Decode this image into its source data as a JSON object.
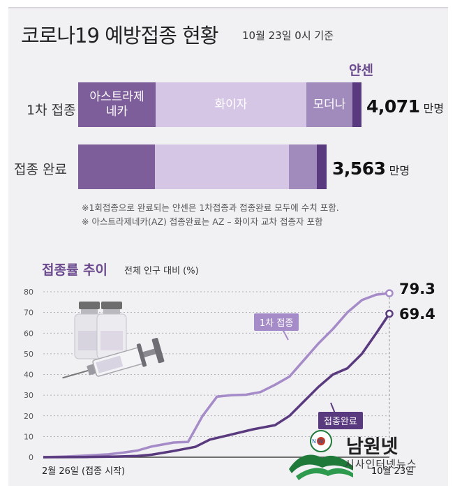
{
  "header": {
    "title": "코로나19 예방접종 현황",
    "as_of": "10월 23일 0시 기준"
  },
  "chart_data": [
    {
      "type": "bar",
      "orientation": "horizontal",
      "stacked": true,
      "categories": [
        "1차 접종",
        "접종 완료"
      ],
      "series": [
        {
          "name": "아스트라제네카",
          "color": "#7e5e9a"
        },
        {
          "name": "화이자",
          "color": "#d6c6e6"
        },
        {
          "name": "모더나",
          "color": "#a18bbd"
        },
        {
          "name": "얀센",
          "color": "#5a3a7e"
        }
      ],
      "totals": [
        {
          "value": "4,071",
          "unit": "만명"
        },
        {
          "value": "3,563",
          "unit": "만명"
        }
      ],
      "notes": [
        "※1회접종으로 완료되는 얀센은 1차접종과 접종완료 모두에 수치 포함.",
        "※ 아스트라제네카(AZ) 접종완료는 AZ – 화이자 교차 접종자 포함"
      ]
    },
    {
      "type": "line",
      "title": "접종률 추이",
      "subtitle": "전체 인구 대비 (%)",
      "ylim": [
        0,
        80
      ],
      "yticks": [
        0,
        10,
        20,
        30,
        40,
        50,
        60,
        70,
        80
      ],
      "grid": true,
      "x_labels": {
        "start": "2월 26일 (접종 시작)",
        "end": "10월 23일"
      },
      "x_range_days": [
        0,
        239
      ],
      "series": [
        {
          "name": "1차 접종",
          "color": "#a58bc7",
          "end_value": "79.3",
          "points": [
            [
              0,
              0
            ],
            [
              15,
              0.3
            ],
            [
              30,
              0.8
            ],
            [
              45,
              1.4
            ],
            [
              55,
              2.2
            ],
            [
              65,
              3.2
            ],
            [
              75,
              5.2
            ],
            [
              90,
              7.1
            ],
            [
              100,
              7.4
            ],
            [
              110,
              20
            ],
            [
              120,
              29.3
            ],
            [
              130,
              30
            ],
            [
              140,
              30.2
            ],
            [
              150,
              31.5
            ],
            [
              160,
              35
            ],
            [
              170,
              39
            ],
            [
              180,
              47
            ],
            [
              190,
              55
            ],
            [
              200,
              62
            ],
            [
              210,
              70
            ],
            [
              220,
              76
            ],
            [
              230,
              78.6
            ],
            [
              239,
              79.3
            ]
          ]
        },
        {
          "name": "접종완료",
          "color": "#5a3a7e",
          "end_value": "69.4",
          "points": [
            [
              0,
              0
            ],
            [
              30,
              0.1
            ],
            [
              50,
              0.3
            ],
            [
              65,
              0.6
            ],
            [
              75,
              1.2
            ],
            [
              90,
              3
            ],
            [
              105,
              5
            ],
            [
              115,
              8.5
            ],
            [
              130,
              11
            ],
            [
              145,
              13.5
            ],
            [
              160,
              15.5
            ],
            [
              170,
              20
            ],
            [
              180,
              27
            ],
            [
              190,
              34
            ],
            [
              200,
              40
            ],
            [
              210,
              43
            ],
            [
              220,
              50
            ],
            [
              230,
              60
            ],
            [
              239,
              69.4
            ]
          ]
        }
      ]
    }
  ],
  "branding": {
    "name": "남원넷",
    "sub": "시사인터넷뉴스",
    "logo_caption": "N W"
  }
}
